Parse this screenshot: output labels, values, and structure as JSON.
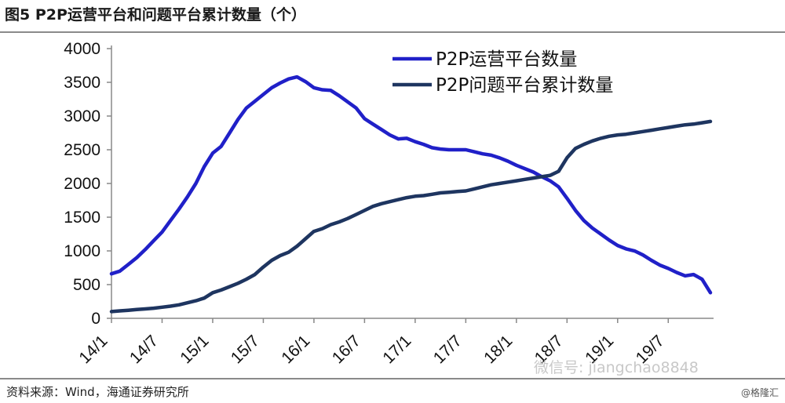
{
  "header": {
    "title": "图5   P2P运营平台和问题平台累计数量（个）"
  },
  "footer": {
    "source": "资料来源：Wind，海通证券研究所",
    "credit": "@格隆汇",
    "watermark": "微信号: jiangchao8848"
  },
  "colors": {
    "operating": "#2020c8",
    "problem": "#1e3560"
  },
  "chart_data": {
    "type": "line",
    "ylim": [
      0,
      4000
    ],
    "yticks": [
      0,
      500,
      1000,
      1500,
      2000,
      2500,
      3000,
      3500,
      4000
    ],
    "xticks": [
      "14/1",
      "14/7",
      "15/1",
      "15/7",
      "16/1",
      "16/7",
      "17/1",
      "17/7",
      "18/1",
      "18/7",
      "19/1",
      "19/7"
    ],
    "x": [
      "14/1",
      "14/2",
      "14/3",
      "14/4",
      "14/5",
      "14/6",
      "14/7",
      "14/8",
      "14/9",
      "14/10",
      "14/11",
      "14/12",
      "15/1",
      "15/2",
      "15/3",
      "15/4",
      "15/5",
      "15/6",
      "15/7",
      "15/8",
      "15/9",
      "15/10",
      "15/11",
      "15/12",
      "16/1",
      "16/2",
      "16/3",
      "16/4",
      "16/5",
      "16/6",
      "16/7",
      "16/8",
      "16/9",
      "16/10",
      "16/11",
      "16/12",
      "17/1",
      "17/2",
      "17/3",
      "17/4",
      "17/5",
      "17/6",
      "17/7",
      "17/8",
      "17/9",
      "17/10",
      "17/11",
      "17/12",
      "18/1",
      "18/2",
      "18/3",
      "18/4",
      "18/5",
      "18/6",
      "18/7",
      "18/8",
      "18/9",
      "18/10",
      "18/11",
      "18/12",
      "19/1",
      "19/2",
      "19/3",
      "19/4",
      "19/5",
      "19/6",
      "19/7",
      "19/8",
      "19/9",
      "19/10",
      "19/11",
      "19/12"
    ],
    "series": [
      {
        "name": "P2P运营平台数量",
        "values": [
          660,
          700,
          800,
          900,
          1020,
          1150,
          1280,
          1450,
          1620,
          1800,
          2000,
          2250,
          2450,
          2550,
          2750,
          2950,
          3120,
          3220,
          3320,
          3420,
          3490,
          3550,
          3580,
          3510,
          3420,
          3390,
          3380,
          3300,
          3210,
          3120,
          2960,
          2880,
          2800,
          2720,
          2660,
          2670,
          2620,
          2580,
          2530,
          2510,
          2500,
          2500,
          2500,
          2470,
          2440,
          2420,
          2380,
          2330,
          2270,
          2220,
          2170,
          2100,
          2040,
          1950,
          1780,
          1600,
          1450,
          1340,
          1250,
          1160,
          1080,
          1030,
          1000,
          940,
          860,
          790,
          740,
          680,
          630,
          650,
          580,
          380
        ]
      },
      {
        "name": "P2P问题平台累计数量",
        "values": [
          100,
          110,
          120,
          130,
          140,
          150,
          165,
          180,
          200,
          230,
          260,
          300,
          380,
          420,
          470,
          520,
          580,
          650,
          760,
          860,
          930,
          980,
          1070,
          1180,
          1290,
          1330,
          1390,
          1430,
          1480,
          1540,
          1600,
          1660,
          1700,
          1730,
          1760,
          1790,
          1810,
          1820,
          1840,
          1860,
          1870,
          1880,
          1890,
          1920,
          1950,
          1980,
          2000,
          2020,
          2040,
          2060,
          2080,
          2100,
          2120,
          2180,
          2380,
          2520,
          2580,
          2630,
          2670,
          2700,
          2720,
          2730,
          2750,
          2770,
          2790,
          2810,
          2830,
          2850,
          2870,
          2880,
          2900,
          2920
        ]
      }
    ]
  }
}
